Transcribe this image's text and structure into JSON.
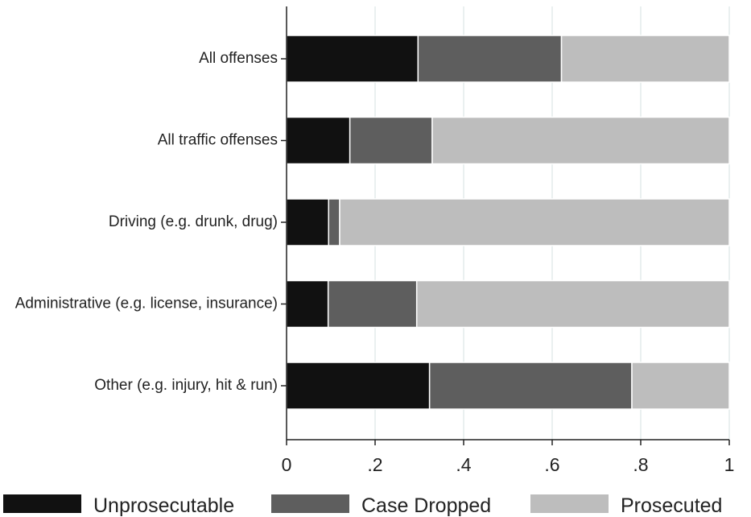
{
  "chart_data": {
    "type": "bar",
    "orientation": "horizontal",
    "stacked": true,
    "categories": [
      "All offenses",
      "All traffic offenses",
      "Driving (e.g. drunk, drug)",
      "Administrative (e.g. license, insurance)",
      "Other (e.g. injury, hit & run)"
    ],
    "series": [
      {
        "name": "Unprosecutable",
        "color": "#111111",
        "values": [
          0.297,
          0.143,
          0.095,
          0.094,
          0.323
        ]
      },
      {
        "name": "Case Dropped",
        "color": "#5e5e5e",
        "values": [
          0.324,
          0.186,
          0.025,
          0.2,
          0.457
        ]
      },
      {
        "name": "Prosecuted",
        "color": "#bdbdbd",
        "values": [
          0.379,
          0.671,
          0.88,
          0.706,
          0.22
        ]
      }
    ],
    "xticks": [
      "0",
      ".2",
      ".4",
      ".6",
      ".8",
      "1"
    ],
    "xtick_values": [
      0,
      0.2,
      0.4,
      0.6,
      0.8,
      1.0
    ],
    "xlim": [
      0,
      1
    ],
    "title": "",
    "xlabel": "",
    "ylabel": "",
    "grid": "vertical",
    "grid_color": "#e3eceb",
    "legend_position": "bottom"
  }
}
